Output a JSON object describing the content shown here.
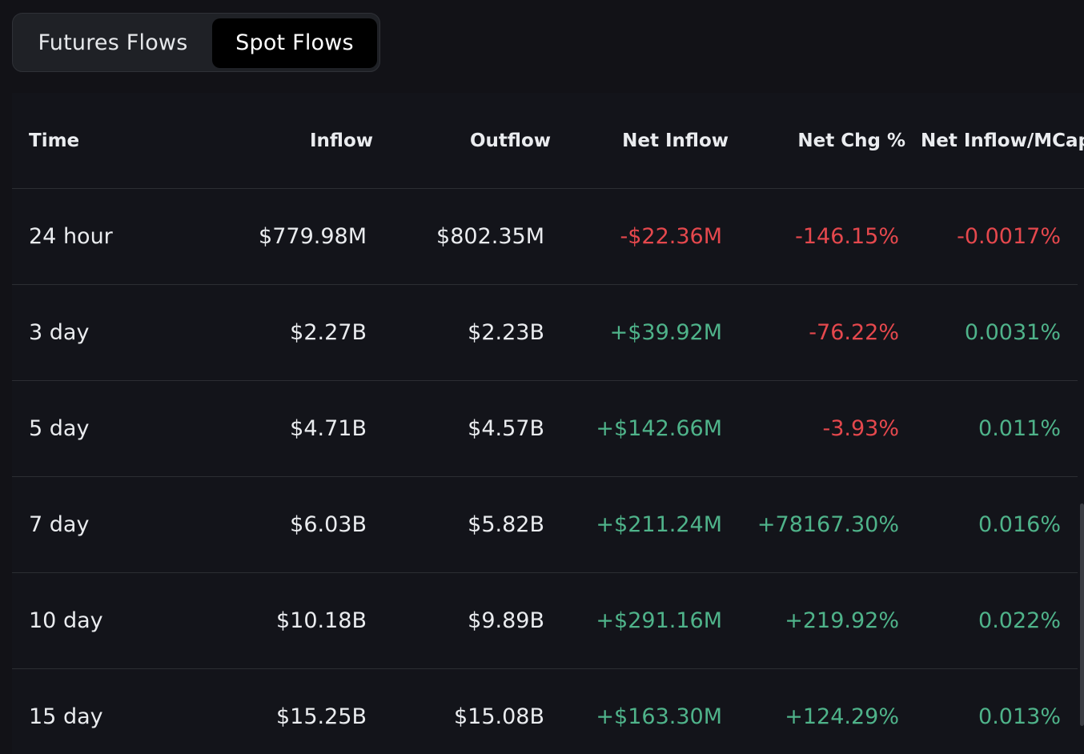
{
  "tabs": [
    {
      "label": "Futures Flows",
      "active": false
    },
    {
      "label": "Spot Flows",
      "active": true
    }
  ],
  "table": {
    "headers": {
      "time": "Time",
      "inflow": "Inflow",
      "outflow": "Outflow",
      "net_inflow": "Net Inflow",
      "net_chg": "Net Chg %",
      "net_mcap": "Net Inflow/MCap"
    },
    "rows": [
      {
        "time": "24 hour",
        "inflow": "$779.98M",
        "outflow": "$802.35M",
        "net_inflow": "-$22.36M",
        "net_inflow_sign": "neg",
        "net_chg": "-146.15%",
        "net_chg_sign": "neg",
        "net_mcap": "-0.0017%",
        "net_mcap_sign": "neg"
      },
      {
        "time": "3 day",
        "inflow": "$2.27B",
        "outflow": "$2.23B",
        "net_inflow": "+$39.92M",
        "net_inflow_sign": "pos",
        "net_chg": "-76.22%",
        "net_chg_sign": "neg",
        "net_mcap": "0.0031%",
        "net_mcap_sign": "pos"
      },
      {
        "time": "5 day",
        "inflow": "$4.71B",
        "outflow": "$4.57B",
        "net_inflow": "+$142.66M",
        "net_inflow_sign": "pos",
        "net_chg": "-3.93%",
        "net_chg_sign": "neg",
        "net_mcap": "0.011%",
        "net_mcap_sign": "pos"
      },
      {
        "time": "7 day",
        "inflow": "$6.03B",
        "outflow": "$5.82B",
        "net_inflow": "+$211.24M",
        "net_inflow_sign": "pos",
        "net_chg": "+78167.30%",
        "net_chg_sign": "pos",
        "net_mcap": "0.016%",
        "net_mcap_sign": "pos"
      },
      {
        "time": "10 day",
        "inflow": "$10.18B",
        "outflow": "$9.89B",
        "net_inflow": "+$291.16M",
        "net_inflow_sign": "pos",
        "net_chg": "+219.92%",
        "net_chg_sign": "pos",
        "net_mcap": "0.022%",
        "net_mcap_sign": "pos"
      },
      {
        "time": "15 day",
        "inflow": "$15.25B",
        "outflow": "$15.08B",
        "net_inflow": "+$163.30M",
        "net_inflow_sign": "pos",
        "net_chg": "+124.29%",
        "net_chg_sign": "pos",
        "net_mcap": "0.013%",
        "net_mcap_sign": "pos"
      }
    ]
  },
  "colors": {
    "background": "#121217",
    "positive": "#4fb38a",
    "negative": "#e5484d",
    "text": "#eaecef"
  }
}
